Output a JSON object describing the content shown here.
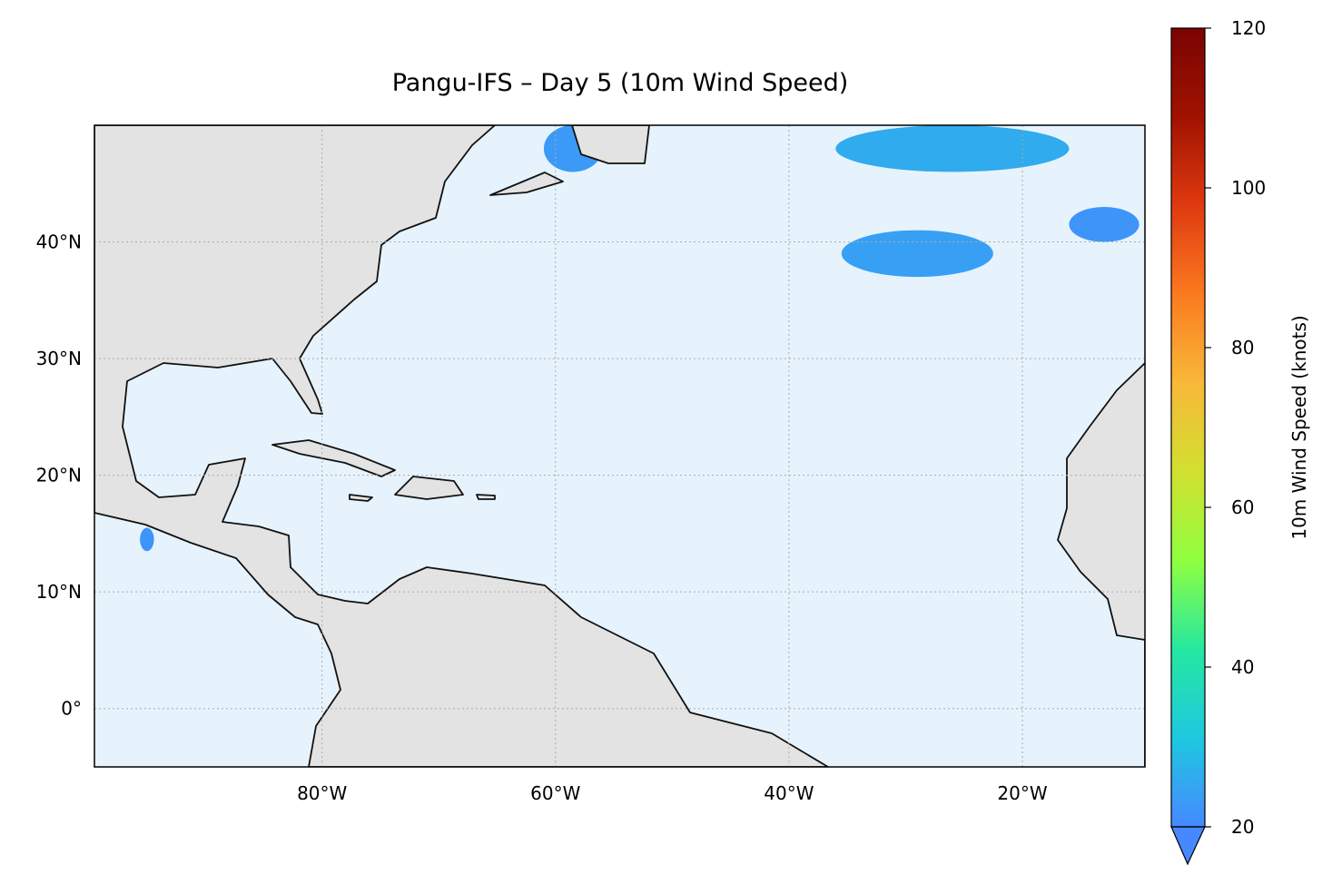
{
  "chart_data": {
    "type": "map",
    "title": "Pangu-IFS – Day 5 (10m Wind Speed)",
    "xlim": [
      -99.5,
      -9.5
    ],
    "ylim": [
      -5,
      50
    ],
    "xticks": [
      {
        "value": -80,
        "label": "80°W"
      },
      {
        "value": -60,
        "label": "60°W"
      },
      {
        "value": -40,
        "label": "40°W"
      },
      {
        "value": -20,
        "label": "20°W"
      }
    ],
    "yticks": [
      {
        "value": 0,
        "label": "0°"
      },
      {
        "value": 10,
        "label": "10°N"
      },
      {
        "value": 20,
        "label": "20°N"
      },
      {
        "value": 30,
        "label": "30°N"
      },
      {
        "value": 40,
        "label": "40°N"
      }
    ],
    "grid": true,
    "ocean_color": "#e6f3fc",
    "wind_areas": [
      {
        "lon": -26,
        "lat": 48,
        "lon_span": 20,
        "lat_span": 4,
        "speed": 26
      },
      {
        "lon": -29,
        "lat": 39,
        "lon_span": 13,
        "lat_span": 4,
        "speed": 24
      },
      {
        "lon": -13,
        "lat": 41.5,
        "lon_span": 6,
        "lat_span": 3,
        "speed": 22
      },
      {
        "lon": -58.5,
        "lat": 48,
        "lon_span": 5,
        "lat_span": 4,
        "speed": 23
      },
      {
        "lon": -95,
        "lat": 14.5,
        "lon_span": 1.2,
        "lat_span": 2,
        "speed": 22
      }
    ],
    "colorbar": {
      "label": "10m Wind Speed (knots)",
      "lim": [
        20,
        120
      ],
      "ticks": [
        20,
        40,
        60,
        80,
        100,
        120
      ],
      "colors": [
        "#4689ff",
        "#1ec8e0",
        "#25e8a0",
        "#90ff40",
        "#d2e030",
        "#f8b838",
        "#fb7a20",
        "#df3a10",
        "#a01200",
        "#7a0403"
      ]
    }
  }
}
